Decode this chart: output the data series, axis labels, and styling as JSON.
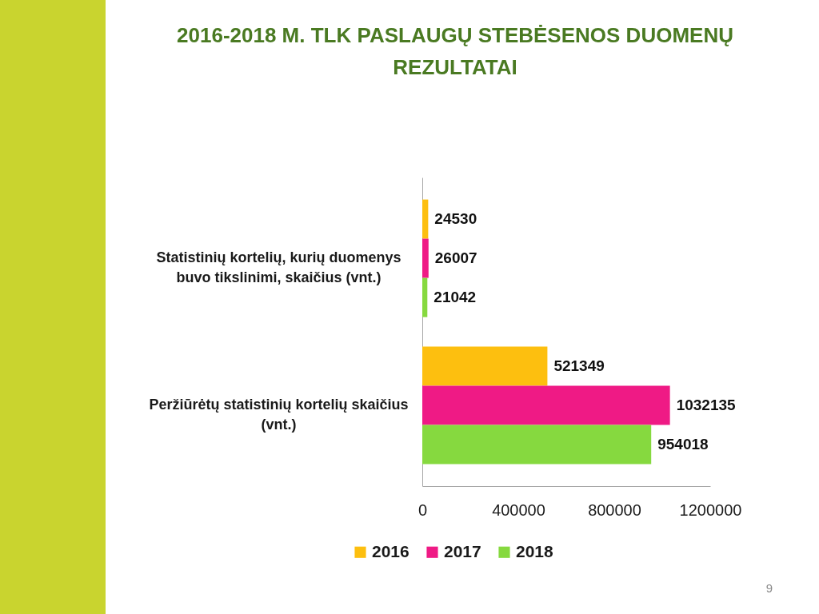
{
  "chart_data": {
    "type": "bar",
    "orientation": "horizontal",
    "title": "2016-2018 M. TLK PASLAUGŲ STEBĖSENOS DUOMENŲ REZULTATAI",
    "categories": [
      "Statistinių kortelių, kurių duomenys buvo tikslinimi, skaičius (vnt.)",
      "Peržiūrėtų statistinių kortelių skaičius (vnt.)"
    ],
    "series": [
      {
        "name": "2016",
        "color": "#fdbf0f",
        "values": [
          24530,
          521349
        ]
      },
      {
        "name": "2017",
        "color": "#ef1a85",
        "values": [
          26007,
          1032135
        ]
      },
      {
        "name": "2018",
        "color": "#86d93f",
        "values": [
          21042,
          954018
        ]
      }
    ],
    "xlim": [
      0,
      1200000
    ],
    "xticks": [
      0,
      400000,
      800000,
      1200000
    ],
    "grid": false,
    "legend": "bottom",
    "data_labels": true,
    "annotations": [
      "9"
    ]
  }
}
